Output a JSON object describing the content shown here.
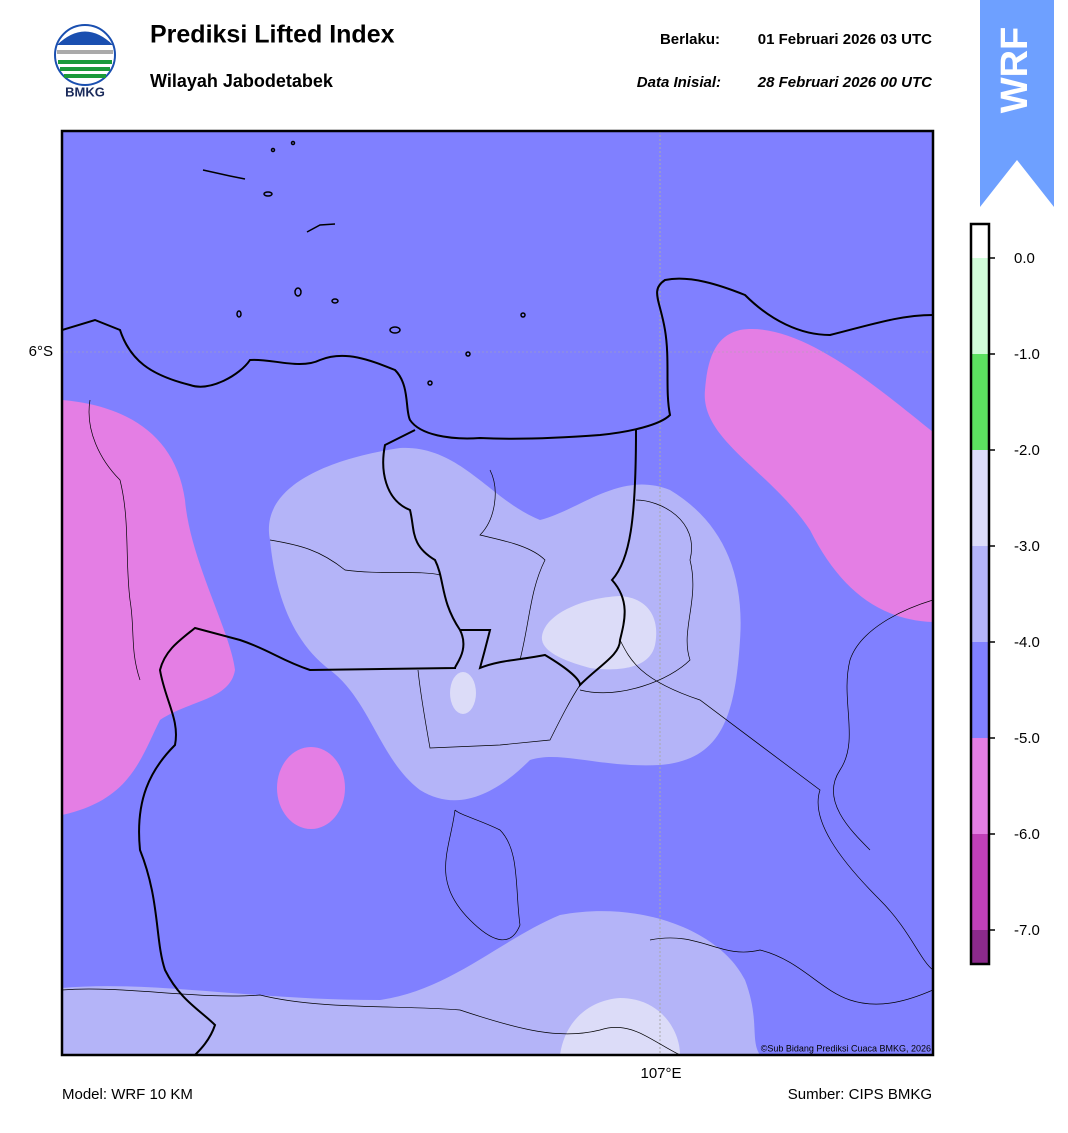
{
  "header": {
    "title": "Prediksi Lifted Index",
    "subtitle": "Wilayah Jabodetabek",
    "logo_text": "BMKG",
    "valid_label": "Berlaku:",
    "valid_value": "01 Februari 2026 03 UTC",
    "init_label": "Data Inisial:",
    "init_value": "28 Februari 2026 00 UTC",
    "badge": "WRF"
  },
  "map": {
    "lat_label": "6°S",
    "lon_label": "107°E",
    "copyright": "©Sub Bidang Prediksi Cuaca BMKG, 2026"
  },
  "colorbar": {
    "labels": [
      "0.0",
      "-1.0",
      "-2.0",
      "-3.0",
      "-4.0",
      "-5.0",
      "-6.0",
      "-7.0"
    ],
    "colors": [
      "#ffffff",
      "#d0fcd8",
      "#5ce060",
      "#dcdcf8",
      "#b4b4f8",
      "#8080ff",
      "#e47ee4",
      "#c040b8",
      "#8c2a8c"
    ]
  },
  "footer": {
    "model": "Model: WRF 10 KM",
    "source": "Sumber: CIPS BMKG"
  }
}
